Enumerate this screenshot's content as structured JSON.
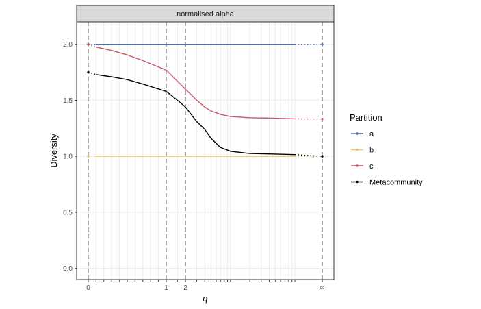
{
  "chart_data": {
    "type": "line",
    "facet_title": "normalised alpha",
    "xlabel": "q",
    "ylabel": "Diversity",
    "x_ticks": [
      "0",
      "1",
      "2",
      "∞"
    ],
    "y_ticks": [
      "0.0",
      "0.5",
      "1.0",
      "1.5",
      "2.0"
    ],
    "ylim": [
      -0.1,
      2.2
    ],
    "grid": "major y, minor x",
    "reference_lines_q": [
      0,
      1,
      2,
      "∞"
    ],
    "legend": {
      "title": "Partition",
      "position": "right",
      "entries": [
        "a",
        "b",
        "c",
        "Metacommunity"
      ]
    },
    "x": [
      0.1,
      0.2,
      0.3,
      0.5,
      0.7,
      1,
      1.5,
      2,
      3,
      4,
      5,
      7,
      10,
      20,
      50,
      100
    ],
    "series": [
      {
        "name": "a",
        "color": "#4a72b8",
        "q0": 2.0,
        "values": [
          2.0,
          2.0,
          2.0,
          2.0,
          2.0,
          2.0,
          2.0,
          2.0,
          2.0,
          2.0,
          2.0,
          2.0,
          2.0,
          2.0,
          2.0,
          2.0
        ],
        "q_inf": 2.0
      },
      {
        "name": "b",
        "color": "#e7c463",
        "q0": 1.0,
        "values": [
          1.0,
          1.0,
          1.0,
          1.0,
          1.0,
          1.0,
          1.0,
          1.0,
          1.0,
          1.0,
          1.0,
          1.0,
          1.0,
          1.0,
          1.0,
          1.0
        ],
        "q_inf": 1.0
      },
      {
        "name": "c",
        "color": "#c95568",
        "q0": 2.0,
        "values": [
          1.975,
          1.96,
          1.945,
          1.905,
          1.855,
          1.77,
          1.67,
          1.6,
          1.5,
          1.44,
          1.405,
          1.375,
          1.355,
          1.345,
          1.34,
          1.335
        ],
        "q_inf": 1.333
      },
      {
        "name": "Metacommunity",
        "color": "#000000",
        "q0": 1.75,
        "values": [
          1.73,
          1.72,
          1.71,
          1.685,
          1.645,
          1.58,
          1.5,
          1.44,
          1.31,
          1.24,
          1.16,
          1.08,
          1.045,
          1.025,
          1.02,
          1.015
        ],
        "q_inf": 1.0
      }
    ]
  }
}
